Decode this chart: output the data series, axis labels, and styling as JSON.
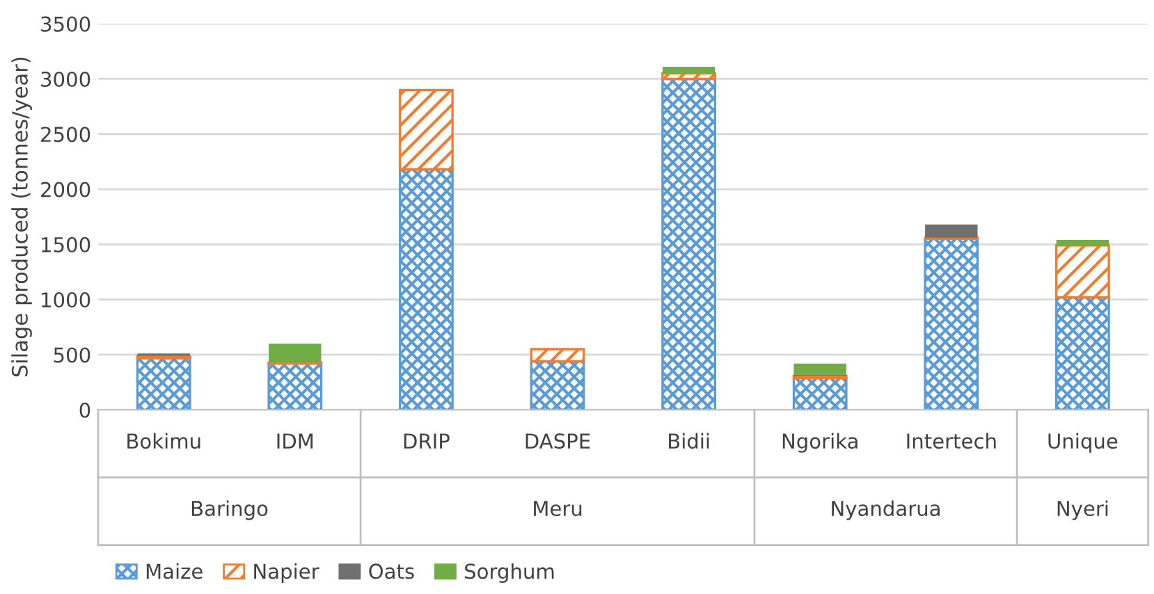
{
  "chart_data": {
    "type": "bar",
    "stacked": true,
    "ylabel": "Silage produced (tonnes/year)",
    "categories": [
      "Bokimu",
      "IDM",
      "DRIP",
      "DASPE",
      "Bidii",
      "Ngorika",
      "Intertech",
      "Unique"
    ],
    "annotations": [
      "Baringo",
      "Meru",
      "Nyandarua",
      "Nyeri"
    ],
    "series": [
      {
        "name": "Maize",
        "color": "#5b9bd5",
        "values": [
          470,
          420,
          2180,
          440,
          3000,
          290,
          1550,
          1020
        ]
      },
      {
        "name": "Napier",
        "color": "#ed7d31",
        "values": [
          20,
          10,
          720,
          110,
          50,
          20,
          10,
          470
        ]
      },
      {
        "name": "Oats",
        "color": "#707070",
        "values": [
          20,
          null,
          null,
          null,
          null,
          10,
          120,
          null
        ]
      },
      {
        "name": "Sorghum",
        "color": "#70ad47",
        "values": [
          null,
          170,
          null,
          null,
          60,
          100,
          null,
          50
        ]
      }
    ],
    "ylim": [
      0,
      3500
    ],
    "yticks": [
      0,
      500,
      1000,
      1500,
      2000,
      2500,
      3000,
      3500
    ],
    "grid": "y",
    "legend": "bottom"
  }
}
